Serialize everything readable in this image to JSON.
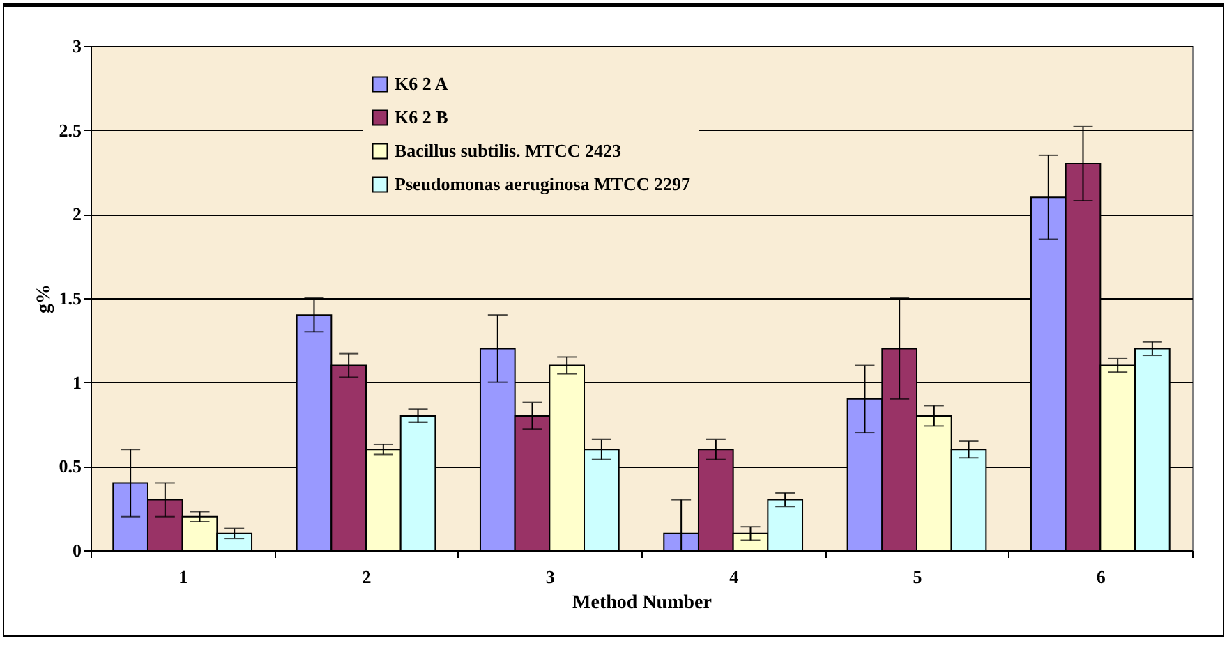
{
  "chart_data": {
    "type": "bar",
    "xlabel": "Method Number",
    "ylabel": "g%",
    "categories": [
      "1",
      "2",
      "3",
      "4",
      "5",
      "6"
    ],
    "series": [
      {
        "name": "K6 2 A",
        "color": "#9999ff",
        "values": [
          0.4,
          1.4,
          1.2,
          0.1,
          0.9,
          2.1
        ],
        "errors": [
          0.2,
          0.1,
          0.2,
          [
            0,
            0.3
          ],
          0.2,
          0.25
        ]
      },
      {
        "name": "K6 2 B",
        "color": "#993366",
        "values": [
          0.3,
          1.1,
          0.8,
          0.6,
          1.2,
          2.3
        ],
        "errors": [
          0.1,
          0.07,
          0.08,
          0.06,
          0.3,
          0.22
        ]
      },
      {
        "name": "Bacillus subtilis. MTCC 2423",
        "color": "#ffffcc",
        "values": [
          0.2,
          0.6,
          1.1,
          0.1,
          0.8,
          1.1
        ],
        "errors": [
          0.03,
          0.03,
          0.05,
          0.04,
          0.06,
          0.04
        ]
      },
      {
        "name": "Pseudomonas aeruginosa MTCC 2297",
        "color": "#ccffff",
        "values": [
          0.1,
          0.8,
          0.6,
          0.3,
          0.6,
          1.2
        ],
        "errors": [
          0.03,
          0.04,
          0.06,
          0.04,
          0.05,
          0.04
        ]
      }
    ],
    "ylim": [
      0,
      3
    ],
    "yticks": [
      0,
      0.5,
      1,
      1.5,
      2,
      2.5,
      3
    ],
    "grid": "y",
    "legend": "top"
  }
}
